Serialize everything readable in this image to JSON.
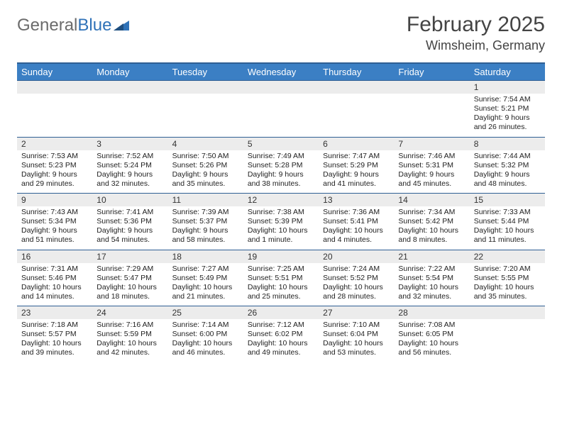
{
  "brand": {
    "part1": "General",
    "part2": "Blue"
  },
  "title": "February 2025",
  "location": "Wimsheim, Germany",
  "colors": {
    "header_bg": "#3b7fc4",
    "header_text": "#ffffff",
    "rule": "#2f5f94",
    "daynum_bg": "#ececec",
    "text": "#222222",
    "brand_gray": "#6b6b6b",
    "brand_blue": "#2f72b8"
  },
  "day_names": [
    "Sunday",
    "Monday",
    "Tuesday",
    "Wednesday",
    "Thursday",
    "Friday",
    "Saturday"
  ],
  "weeks": [
    {
      "nums": [
        "",
        "",
        "",
        "",
        "",
        "",
        "1"
      ],
      "cells": [
        "",
        "",
        "",
        "",
        "",
        "",
        "Sunrise: 7:54 AM\nSunset: 5:21 PM\nDaylight: 9 hours and 26 minutes."
      ]
    },
    {
      "nums": [
        "2",
        "3",
        "4",
        "5",
        "6",
        "7",
        "8"
      ],
      "cells": [
        "Sunrise: 7:53 AM\nSunset: 5:23 PM\nDaylight: 9 hours and 29 minutes.",
        "Sunrise: 7:52 AM\nSunset: 5:24 PM\nDaylight: 9 hours and 32 minutes.",
        "Sunrise: 7:50 AM\nSunset: 5:26 PM\nDaylight: 9 hours and 35 minutes.",
        "Sunrise: 7:49 AM\nSunset: 5:28 PM\nDaylight: 9 hours and 38 minutes.",
        "Sunrise: 7:47 AM\nSunset: 5:29 PM\nDaylight: 9 hours and 41 minutes.",
        "Sunrise: 7:46 AM\nSunset: 5:31 PM\nDaylight: 9 hours and 45 minutes.",
        "Sunrise: 7:44 AM\nSunset: 5:32 PM\nDaylight: 9 hours and 48 minutes."
      ]
    },
    {
      "nums": [
        "9",
        "10",
        "11",
        "12",
        "13",
        "14",
        "15"
      ],
      "cells": [
        "Sunrise: 7:43 AM\nSunset: 5:34 PM\nDaylight: 9 hours and 51 minutes.",
        "Sunrise: 7:41 AM\nSunset: 5:36 PM\nDaylight: 9 hours and 54 minutes.",
        "Sunrise: 7:39 AM\nSunset: 5:37 PM\nDaylight: 9 hours and 58 minutes.",
        "Sunrise: 7:38 AM\nSunset: 5:39 PM\nDaylight: 10 hours and 1 minute.",
        "Sunrise: 7:36 AM\nSunset: 5:41 PM\nDaylight: 10 hours and 4 minutes.",
        "Sunrise: 7:34 AM\nSunset: 5:42 PM\nDaylight: 10 hours and 8 minutes.",
        "Sunrise: 7:33 AM\nSunset: 5:44 PM\nDaylight: 10 hours and 11 minutes."
      ]
    },
    {
      "nums": [
        "16",
        "17",
        "18",
        "19",
        "20",
        "21",
        "22"
      ],
      "cells": [
        "Sunrise: 7:31 AM\nSunset: 5:46 PM\nDaylight: 10 hours and 14 minutes.",
        "Sunrise: 7:29 AM\nSunset: 5:47 PM\nDaylight: 10 hours and 18 minutes.",
        "Sunrise: 7:27 AM\nSunset: 5:49 PM\nDaylight: 10 hours and 21 minutes.",
        "Sunrise: 7:25 AM\nSunset: 5:51 PM\nDaylight: 10 hours and 25 minutes.",
        "Sunrise: 7:24 AM\nSunset: 5:52 PM\nDaylight: 10 hours and 28 minutes.",
        "Sunrise: 7:22 AM\nSunset: 5:54 PM\nDaylight: 10 hours and 32 minutes.",
        "Sunrise: 7:20 AM\nSunset: 5:55 PM\nDaylight: 10 hours and 35 minutes."
      ]
    },
    {
      "nums": [
        "23",
        "24",
        "25",
        "26",
        "27",
        "28",
        ""
      ],
      "cells": [
        "Sunrise: 7:18 AM\nSunset: 5:57 PM\nDaylight: 10 hours and 39 minutes.",
        "Sunrise: 7:16 AM\nSunset: 5:59 PM\nDaylight: 10 hours and 42 minutes.",
        "Sunrise: 7:14 AM\nSunset: 6:00 PM\nDaylight: 10 hours and 46 minutes.",
        "Sunrise: 7:12 AM\nSunset: 6:02 PM\nDaylight: 10 hours and 49 minutes.",
        "Sunrise: 7:10 AM\nSunset: 6:04 PM\nDaylight: 10 hours and 53 minutes.",
        "Sunrise: 7:08 AM\nSunset: 6:05 PM\nDaylight: 10 hours and 56 minutes.",
        ""
      ]
    }
  ]
}
